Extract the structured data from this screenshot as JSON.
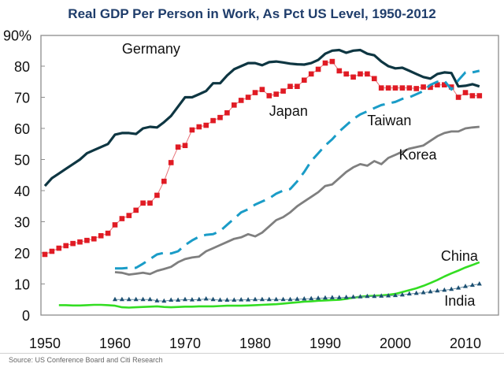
{
  "chart_data": {
    "type": "line",
    "title": "Real GDP Per Person in Work, As Pct US Level, 1950-2012",
    "xlabel": "",
    "ylabel": "",
    "xlim": [
      1950,
      2014
    ],
    "ylim": [
      0,
      90
    ],
    "grid": false,
    "legend": "inline labels",
    "x_ticks": [
      "1950",
      "1960",
      "1970",
      "1980",
      "1990",
      "2000",
      "2010"
    ],
    "x_tick_values": [
      1950,
      1960,
      1970,
      1980,
      1990,
      2000,
      2010
    ],
    "y_ticks": [
      "0",
      "10",
      "20",
      "30",
      "40",
      "50",
      "60",
      "70",
      "80",
      "90%"
    ],
    "y_tick_values": [
      0,
      10,
      20,
      30,
      40,
      50,
      60,
      70,
      80,
      90
    ],
    "source": "Source: US Conference Board and Citi Research",
    "series": [
      {
        "name": "Germany",
        "color": "#0e3642",
        "style": "solid-thick",
        "x_start": 1950,
        "values": [
          41.5,
          44,
          45.5,
          47,
          48.5,
          50,
          52,
          53,
          54,
          55,
          58,
          58.5,
          58.5,
          58.2,
          60,
          60.5,
          60.3,
          62,
          64,
          67,
          70,
          70,
          71,
          72,
          74.5,
          74.5,
          77,
          79,
          80,
          81,
          81,
          80.3,
          81.3,
          81.5,
          81.2,
          80.8,
          80.6,
          80.5,
          81,
          82,
          84,
          85,
          85.2,
          84.3,
          85,
          85.2,
          84,
          83.5,
          81.5,
          80,
          79.3,
          79.5,
          78.5,
          77.5,
          76.5,
          76,
          77.5,
          78,
          77.8,
          73.5,
          73.7,
          74.2,
          73.5
        ],
        "label_pos": [
          1961,
          84
        ]
      },
      {
        "name": "Japan",
        "color": "#e01b24",
        "style": "square-markers",
        "x_start": 1950,
        "values": [
          19.5,
          20.5,
          21.5,
          22.3,
          23,
          23.5,
          24,
          24.5,
          25.5,
          26.3,
          29,
          31,
          32,
          33.7,
          36,
          36,
          38.5,
          43,
          49,
          54,
          54.5,
          59.5,
          60.5,
          61,
          62.5,
          63.5,
          65,
          67.5,
          69,
          70,
          71.5,
          72.5,
          70.5,
          71,
          72,
          73.5,
          73.5,
          75.5,
          77.5,
          79,
          81,
          81.5,
          78.5,
          77.5,
          76.5,
          77.5,
          77.5,
          76,
          73,
          73,
          73,
          73,
          73,
          72.8,
          73.3,
          73.2,
          74,
          74,
          73.3,
          70,
          71.5,
          70.5,
          70.5
        ],
        "label_pos": [
          1982,
          64
        ]
      },
      {
        "name": "Taiwan",
        "color": "#1a9cc7",
        "style": "dashed",
        "x_start": 1960,
        "values": [
          15,
          15,
          15.2,
          15.2,
          16.5,
          18,
          19.5,
          20,
          19.8,
          20.5,
          22.5,
          24,
          25.2,
          25.8,
          26,
          27,
          29,
          31,
          33,
          34,
          35.5,
          36.5,
          37.5,
          39,
          40,
          40.5,
          43,
          46,
          49.5,
          52,
          54.5,
          56.5,
          59,
          61,
          63,
          64.5,
          65.5,
          66.5,
          67.5,
          68,
          68.5,
          69.5,
          70,
          71,
          72,
          74,
          75,
          75.3,
          72.5,
          75.5,
          78,
          78,
          78.5
        ],
        "label_pos": [
          1996,
          61
        ]
      },
      {
        "name": "Korea",
        "color": "#7f7f7f",
        "style": "solid",
        "x_start": 1960,
        "values": [
          13.8,
          13.6,
          13,
          13.3,
          13.6,
          13.2,
          14.2,
          14.8,
          15.5,
          17,
          18,
          18.5,
          18.8,
          20.5,
          21.5,
          22.5,
          23.5,
          24.5,
          25,
          26,
          25.3,
          26.5,
          28.5,
          30.5,
          31.5,
          33,
          35,
          36.5,
          38,
          39.5,
          41.5,
          42,
          44,
          46,
          47.5,
          48.5,
          48,
          49.5,
          48.5,
          50.5,
          51.5,
          52.5,
          53.5,
          54,
          54.5,
          56,
          57.5,
          58.5,
          59,
          59,
          60,
          60.3,
          60.5
        ],
        "label_pos": [
          2000.5,
          50
        ]
      },
      {
        "name": "China",
        "color": "#33dd22",
        "style": "solid",
        "x_start": 1952,
        "values": [
          3.2,
          3.2,
          3.1,
          3.1,
          3.2,
          3.3,
          3.3,
          3.2,
          3.0,
          2.5,
          2.4,
          2.5,
          2.6,
          2.7,
          2.8,
          2.6,
          2.5,
          2.6,
          2.7,
          2.7,
          2.8,
          2.8,
          2.8,
          2.9,
          3.0,
          3.0,
          3.0,
          3.1,
          3.2,
          3.3,
          3.4,
          3.5,
          3.7,
          3.9,
          4.1,
          4.3,
          4.4,
          4.6,
          4.7,
          4.8,
          4.9,
          5.2,
          5.6,
          5.9,
          6.1,
          6.2,
          6.3,
          6.5,
          6.8,
          7.4,
          8.0,
          8.6,
          9.4,
          10.3,
          11.3,
          12.4,
          13.4,
          14.3,
          15.3,
          16.1,
          17.0
        ],
        "label_pos": [
          2006.5,
          17.5
        ]
      },
      {
        "name": "India",
        "color": "#1b4f72",
        "style": "triangle-markers",
        "x_start": 1960,
        "values": [
          5,
          5,
          5,
          5,
          5,
          5,
          4.6,
          4.5,
          4.8,
          4.8,
          5,
          4.9,
          5,
          5.2,
          5,
          4.8,
          4.8,
          4.8,
          4.9,
          4.9,
          5,
          5,
          5,
          5,
          5,
          5,
          5.1,
          5.2,
          5.3,
          5.4,
          5.5,
          5.6,
          5.6,
          5.7,
          5.8,
          5.9,
          6,
          6,
          6.1,
          6.2,
          6.3,
          6.5,
          6.8,
          7,
          7.2,
          7.5,
          7.8,
          8,
          8.3,
          8.7,
          9.2,
          9.6,
          10
        ],
        "label_pos": [
          2007,
          3
        ]
      }
    ]
  }
}
